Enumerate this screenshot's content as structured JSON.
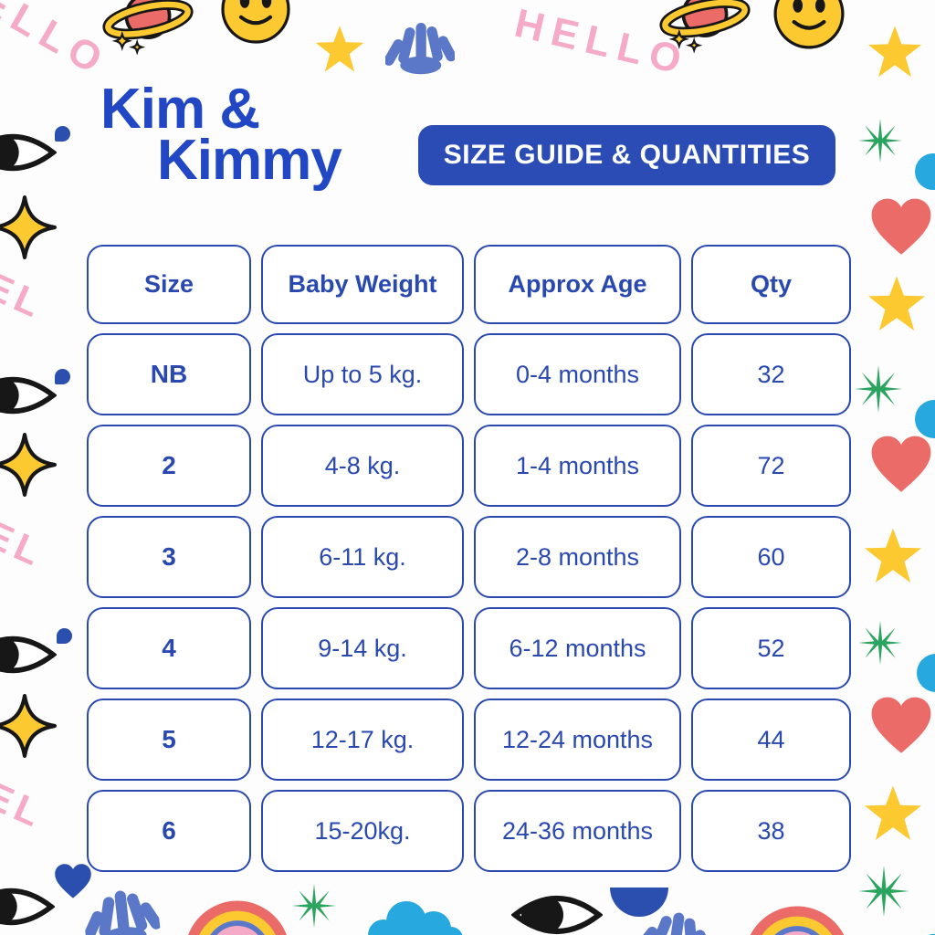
{
  "brand": {
    "name_line1": "Kim &",
    "name_line2": "Kimmy"
  },
  "badge": {
    "label": "SIZE GUIDE & QUANTITIES"
  },
  "table": {
    "headers": [
      "Size",
      "Baby Weight",
      "Approx Age",
      "Qty"
    ],
    "rows": [
      [
        "NB",
        "Up to 5 kg.",
        "0-4 months",
        "32"
      ],
      [
        "2",
        "4-8 kg.",
        "1-4 months",
        "72"
      ],
      [
        "3",
        "6-11 kg.",
        "2-8 months",
        "60"
      ],
      [
        "4",
        "9-14 kg.",
        "6-12 months",
        "52"
      ],
      [
        "5",
        "12-17 kg.",
        "12-24 months",
        "44"
      ],
      [
        "6",
        "15-20kg.",
        "24-36 months",
        "38"
      ]
    ]
  },
  "decorations": {
    "hello_text": "HELLO",
    "el_text": "EL",
    "icons": [
      "saturn-planet-icon",
      "smiley-face-icon",
      "star-icon",
      "hand-icon",
      "eye-icon",
      "sparkle-icon",
      "heart-icon",
      "asterisk-icon",
      "circle-icon",
      "rainbow-icon",
      "cloud-icon",
      "half-circle-icon"
    ]
  },
  "colors": {
    "brand_blue": "#2147c4",
    "table_blue": "#2a49b0",
    "badge_blue": "#2b4cb4",
    "pink": "#f5abc7",
    "yellow": "#fdc930",
    "red": "#ea6b68",
    "green": "#2aa45e",
    "cyan": "#27a9e0",
    "hand_blue": "#5a77c8",
    "dark_blue": "#2b4fae",
    "outline_black": "#171717",
    "background": "#fdfdfe"
  }
}
